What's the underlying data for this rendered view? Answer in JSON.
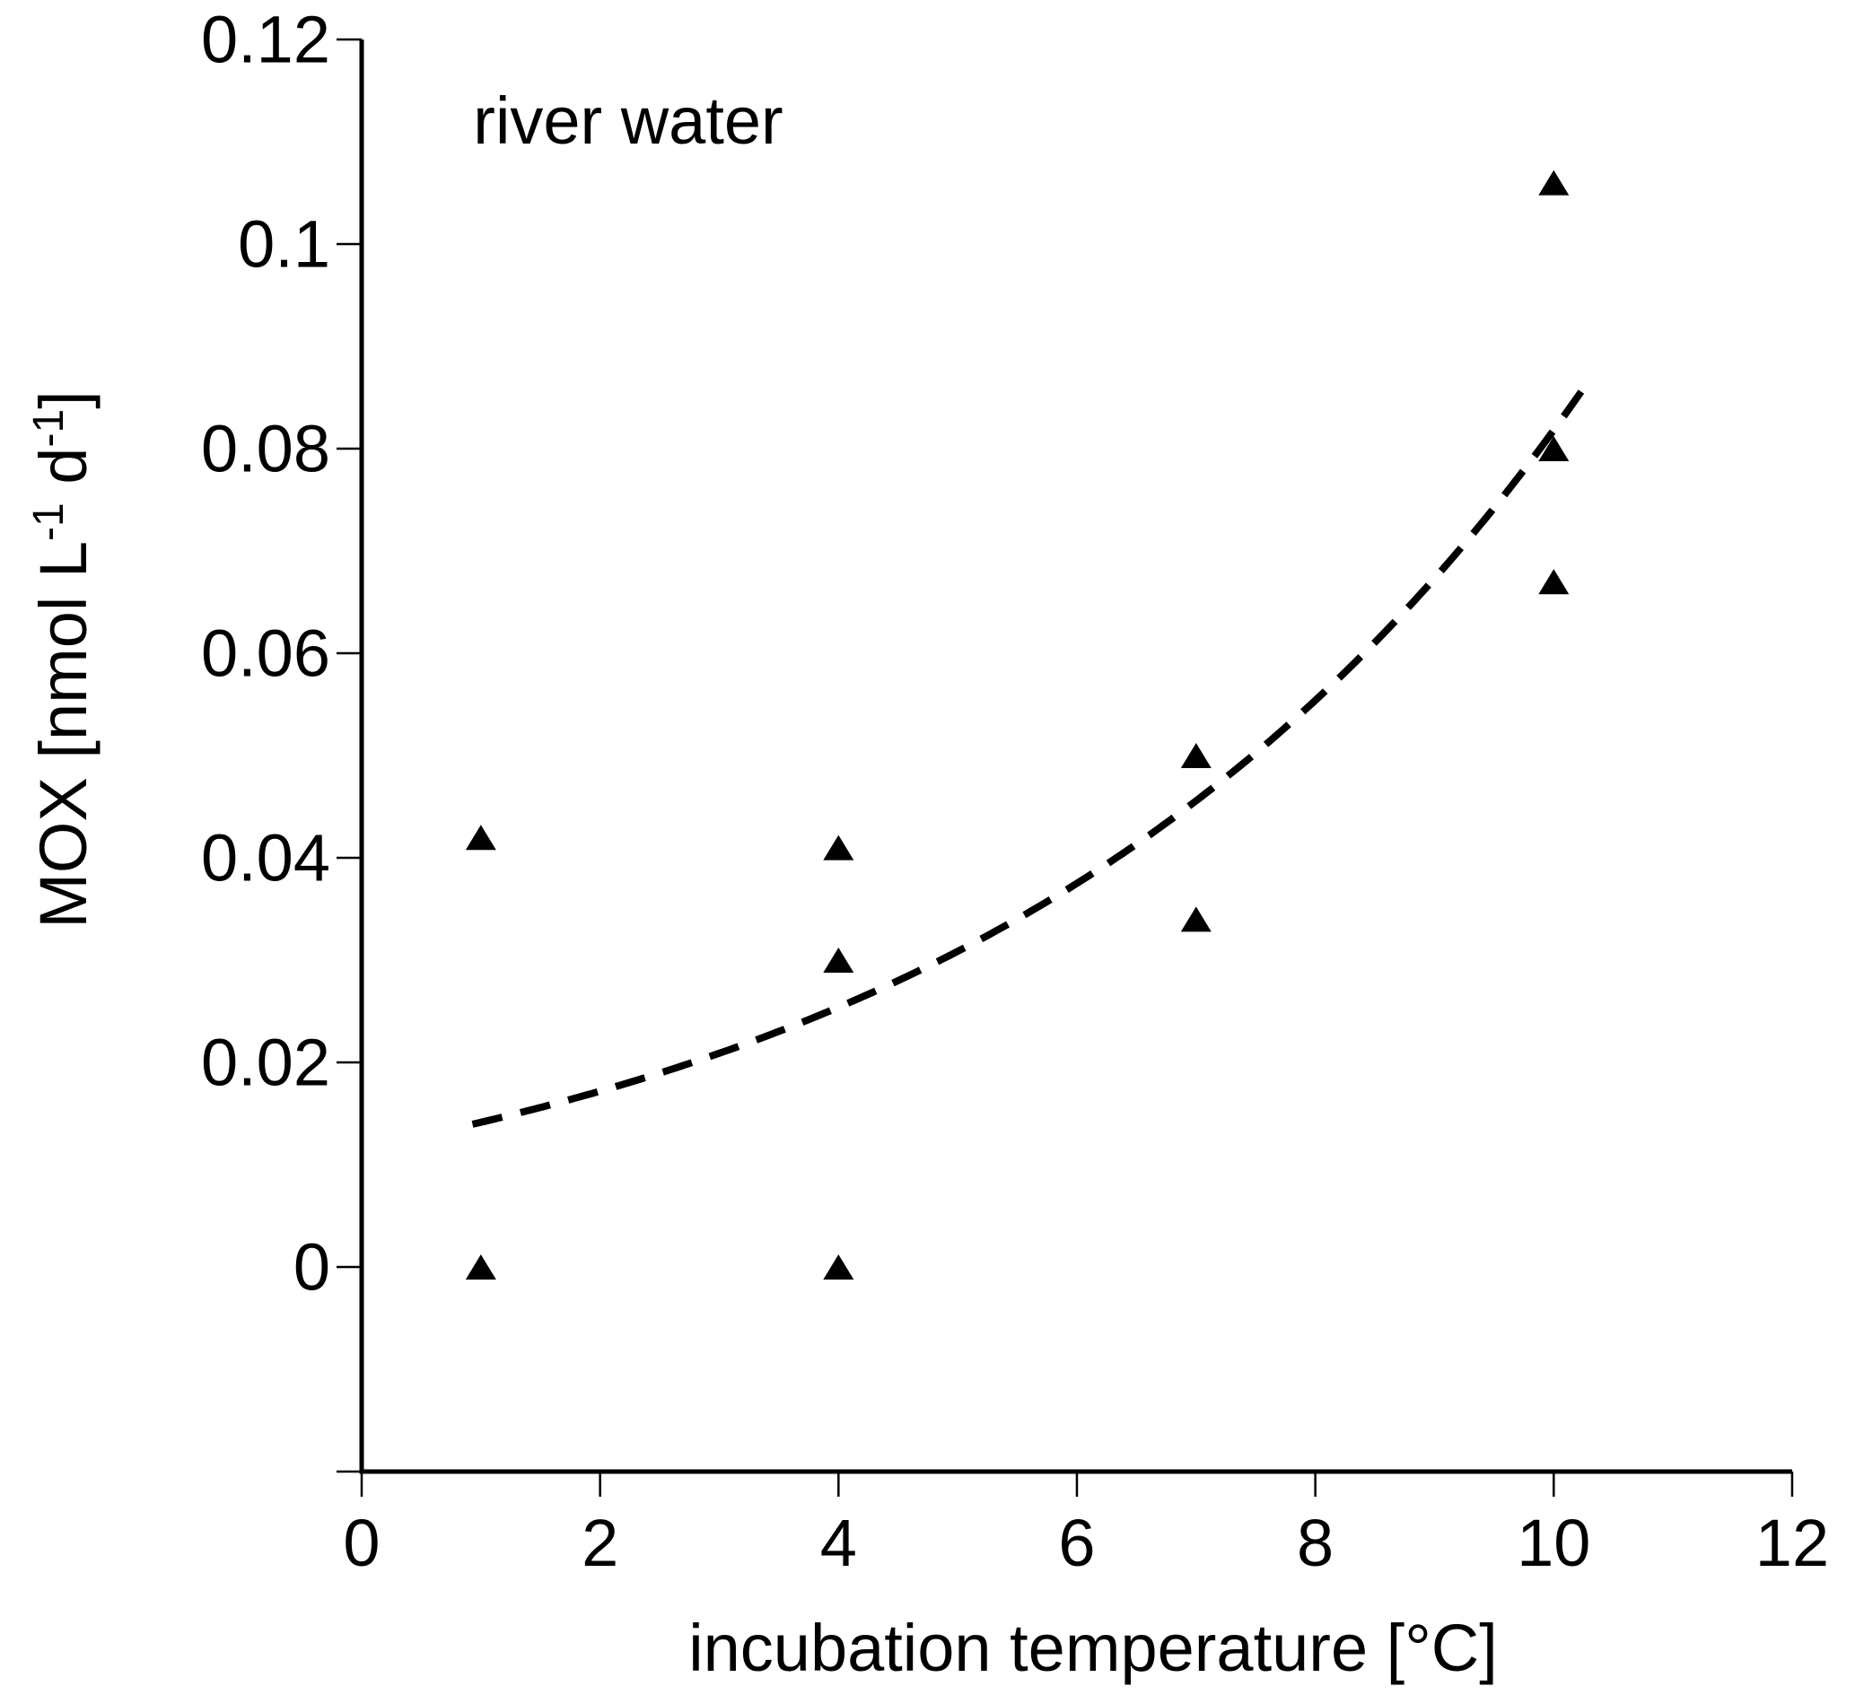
{
  "chart_data": {
    "type": "scatter",
    "annotation": "river water",
    "xlabel": "incubation temperature [°C]",
    "ylabel": "MOX [nmol L-1 d-1]",
    "ylabel_parts": [
      {
        "t": "MOX [nmol L",
        "sup": false
      },
      {
        "t": "-1",
        "sup": true
      },
      {
        "t": " d",
        "sup": false
      },
      {
        "t": "-1",
        "sup": true
      },
      {
        "t": "]",
        "sup": false
      }
    ],
    "xlim": [
      0,
      12
    ],
    "ylim": [
      -0.02,
      0.12
    ],
    "x_ticks": [
      0,
      2,
      4,
      6,
      8,
      10,
      12
    ],
    "x_tick_labels": [
      "0",
      "2",
      "4",
      "6",
      "8",
      "10",
      "12"
    ],
    "y_ticks": [
      -0.02,
      0,
      0.02,
      0.04,
      0.06,
      0.08,
      0.1,
      0.12
    ],
    "y_tick_labels": [
      "",
      "0",
      "0.02",
      "0.04",
      "0.06",
      "0.08",
      "0.1",
      "0.12"
    ],
    "grid": false,
    "legend": false,
    "series": [
      {
        "name": "river water",
        "marker": "filled-triangle-up",
        "color": "#000000",
        "points": [
          {
            "x": 1,
            "y": 0.042
          },
          {
            "x": 1,
            "y": 0.0
          },
          {
            "x": 4,
            "y": 0.041
          },
          {
            "x": 4,
            "y": 0.03
          },
          {
            "x": 4,
            "y": 0.0
          },
          {
            "x": 7,
            "y": 0.05
          },
          {
            "x": 7,
            "y": 0.034
          },
          {
            "x": 10,
            "y": 0.106
          },
          {
            "x": 10,
            "y": 0.08
          },
          {
            "x": 10,
            "y": 0.067
          }
        ]
      }
    ],
    "trend": {
      "style": "dashed",
      "model": "exponential",
      "a": 0.01164,
      "b": 0.195,
      "x_start": 0.93,
      "x_end": 10.25,
      "color": "#000000"
    }
  }
}
